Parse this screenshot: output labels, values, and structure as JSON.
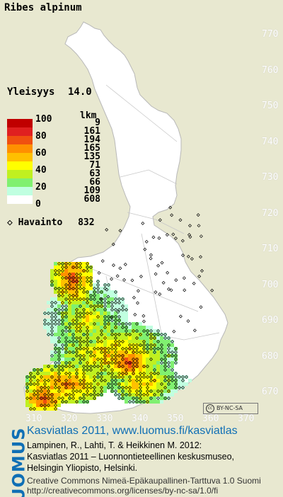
{
  "species": "Ribes alpinum",
  "frequency": {
    "label": "Yleisyys",
    "value": "14.0"
  },
  "legend": {
    "count_header": "lkm",
    "bins": [
      {
        "label": "100",
        "count": "9",
        "color": "#c00000"
      },
      {
        "label": "",
        "count": "161",
        "color": "#e02020"
      },
      {
        "label": "80",
        "count": "194",
        "color": "#f05010"
      },
      {
        "label": "",
        "count": "165",
        "color": "#ff9000"
      },
      {
        "label": "60",
        "count": "135",
        "color": "#ffc000"
      },
      {
        "label": "",
        "count": "71",
        "color": "#ffff00"
      },
      {
        "label": "40",
        "count": "63",
        "color": "#c0f020"
      },
      {
        "label": "",
        "count": "66",
        "color": "#80f070"
      },
      {
        "label": "20",
        "count": "109",
        "color": "#c0ffe0"
      },
      {
        "label": "",
        "count": "608",
        "color": "#ffffff"
      },
      {
        "label": "0",
        "count": "",
        "color": "#ffffff"
      }
    ],
    "observation_label": "Havainto",
    "observation_count": "832"
  },
  "y_axis_ticks": [
    "770",
    "760",
    "750",
    "740",
    "730",
    "720",
    "710",
    "700",
    "690",
    "680",
    "670"
  ],
  "x_axis_ticks": [
    "310",
    "320",
    "330",
    "340",
    "350",
    "360",
    "370"
  ],
  "license_badge": "BY-NC-SA",
  "brand": "LUOMUS",
  "credits": {
    "headline": "Kasviatlas 2011, www.luomus.fi/kasviatlas",
    "line1": "Lampinen, R., Lahti, T. & Heikkinen M. 2012:",
    "line2": "Kasviatlas 2011 – Luonnontieteellinen keskusmuseo,",
    "line3": "Helsingin Yliopisto, Helsinki.",
    "license_line1": "Creative Commons Nimeä-Epäkaupallinen-Tarttuva 1.0 Suomi",
    "license_line2": "http://creativecommons.org/licenses/by-nc-sa/1.0/fi"
  }
}
